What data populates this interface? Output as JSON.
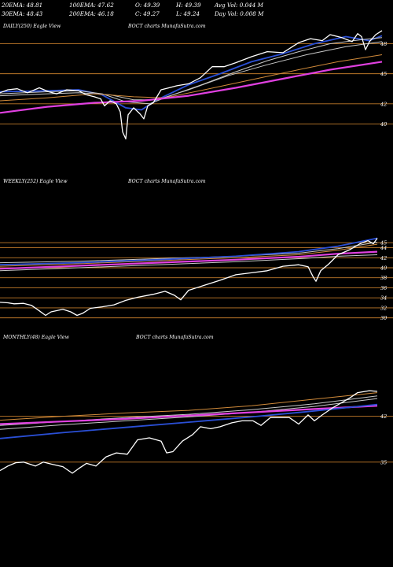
{
  "header": {
    "row1": [
      "20EMA: 48.81",
      "100EMA: 47.62",
      "O: 49.39",
      "H: 49.39",
      "Avg Vol: 0.044  M"
    ],
    "row2": [
      "30EMA: 48.43",
      "200EMA: 46.18",
      "C: 49.27",
      "L: 49.24",
      "Day Vol: 0.008  M"
    ]
  },
  "colors": {
    "background": "#000000",
    "price": "#ffffff",
    "gridline": "#c07a2a",
    "ema_short": "#2a4fd6",
    "ema_long": "#e040e0",
    "ema_mid": "#c8c8c8",
    "ema_orange": "#d08a3a"
  },
  "chart_data": [
    {
      "type": "line",
      "label": "DAILY(250) Eagle  View",
      "watermark": "BOCT charts MunafaSutra.com",
      "y_ticks": [
        48,
        45,
        42,
        40
      ],
      "ylim": [
        39,
        50
      ],
      "x_count": 250,
      "price_path": [
        [
          0,
          43.1
        ],
        [
          10,
          43.4
        ],
        [
          22,
          43.5
        ],
        [
          35,
          43.1
        ],
        [
          50,
          43.6
        ],
        [
          62,
          43.2
        ],
        [
          72,
          43.0
        ],
        [
          85,
          43.4
        ],
        [
          100,
          43.3
        ],
        [
          110,
          42.9
        ],
        [
          120,
          42.7
        ],
        [
          128,
          42.5
        ],
        [
          133,
          41.8
        ],
        [
          140,
          42.3
        ],
        [
          148,
          42.0
        ],
        [
          153,
          41.2
        ],
        [
          156,
          39.2
        ],
        [
          160,
          38.5
        ],
        [
          163,
          40.9
        ],
        [
          170,
          41.6
        ],
        [
          178,
          41.0
        ],
        [
          183,
          40.5
        ],
        [
          188,
          41.8
        ],
        [
          195,
          42.1
        ],
        [
          205,
          43.4
        ],
        [
          215,
          43.6
        ],
        [
          225,
          43.8
        ],
        [
          240,
          44.0
        ],
        [
          255,
          44.6
        ],
        [
          270,
          45.7
        ],
        [
          285,
          45.7
        ],
        [
          300,
          46.1
        ],
        [
          320,
          46.7
        ],
        [
          340,
          47.2
        ],
        [
          360,
          47.1
        ],
        [
          380,
          48.1
        ],
        [
          395,
          48.5
        ],
        [
          410,
          48.3
        ],
        [
          420,
          48.9
        ],
        [
          435,
          48.6
        ],
        [
          448,
          48.2
        ],
        [
          455,
          49.0
        ],
        [
          460,
          48.7
        ],
        [
          465,
          47.4
        ],
        [
          470,
          48.2
        ],
        [
          478,
          48.9
        ],
        [
          486,
          49.3
        ]
      ],
      "ema_series": [
        {
          "color": "#2a4fd6",
          "width": 1.8,
          "path": [
            [
              0,
              43.2
            ],
            [
              60,
              43.3
            ],
            [
              100,
              43.4
            ],
            [
              130,
              42.9
            ],
            [
              160,
              41.6
            ],
            [
              180,
              41.4
            ],
            [
              200,
              42.4
            ],
            [
              240,
              43.9
            ],
            [
              280,
              45.0
            ],
            [
              320,
              46.2
            ],
            [
              360,
              47.0
            ],
            [
              400,
              48.0
            ],
            [
              440,
              48.7
            ],
            [
              470,
              48.3
            ],
            [
              486,
              48.8
            ]
          ]
        },
        {
          "color": "#c8c8c8",
          "width": 1.0,
          "path": [
            [
              0,
              43.0
            ],
            [
              60,
              43.2
            ],
            [
              100,
              43.3
            ],
            [
              130,
              43.0
            ],
            [
              160,
              42.2
            ],
            [
              190,
              42.0
            ],
            [
              220,
              42.9
            ],
            [
              260,
              44.0
            ],
            [
              300,
              45.2
            ],
            [
              340,
              46.3
            ],
            [
              380,
              47.2
            ],
            [
              420,
              48.0
            ],
            [
              460,
              48.4
            ],
            [
              486,
              48.6
            ]
          ]
        },
        {
          "color": "#c8c8c8",
          "width": 1.0,
          "path": [
            [
              0,
              42.8
            ],
            [
              60,
              43.0
            ],
            [
              100,
              43.1
            ],
            [
              140,
              42.9
            ],
            [
              170,
              42.4
            ],
            [
              200,
              42.4
            ],
            [
              240,
              43.4
            ],
            [
              290,
              44.8
            ],
            [
              340,
              45.9
            ],
            [
              390,
              46.9
            ],
            [
              440,
              47.7
            ],
            [
              486,
              48.2
            ]
          ]
        },
        {
          "color": "#d08a3a",
          "width": 1.0,
          "path": [
            [
              0,
              42.3
            ],
            [
              60,
              42.6
            ],
            [
              120,
              43.0
            ],
            [
              170,
              42.7
            ],
            [
              210,
              42.6
            ],
            [
              260,
              43.4
            ],
            [
              320,
              44.4
            ],
            [
              380,
              45.4
            ],
            [
              430,
              46.2
            ],
            [
              486,
              46.9
            ]
          ]
        },
        {
          "color": "#e040e0",
          "width": 2.2,
          "path": [
            [
              0,
              41.1
            ],
            [
              60,
              41.7
            ],
            [
              120,
              42.1
            ],
            [
              180,
              42.3
            ],
            [
              240,
              42.8
            ],
            [
              300,
              43.6
            ],
            [
              360,
              44.5
            ],
            [
              420,
              45.4
            ],
            [
              486,
              46.2
            ]
          ]
        }
      ]
    },
    {
      "type": "line",
      "label": "WEEKLY(252) Eagle  View",
      "watermark": "BOCT charts MunafaSutra.com",
      "y_ticks": [
        45,
        44,
        42,
        40,
        38,
        36,
        34,
        32,
        30
      ],
      "ylim": [
        29,
        46.6
      ],
      "x_count": 252,
      "price_path": [
        [
          0,
          33.1
        ],
        [
          10,
          33.0
        ],
        [
          18,
          32.8
        ],
        [
          30,
          32.9
        ],
        [
          40,
          32.5
        ],
        [
          50,
          31.4
        ],
        [
          58,
          30.5
        ],
        [
          65,
          31.2
        ],
        [
          80,
          31.7
        ],
        [
          90,
          31.2
        ],
        [
          98,
          30.5
        ],
        [
          105,
          30.9
        ],
        [
          115,
          31.9
        ],
        [
          130,
          32.2
        ],
        [
          145,
          32.6
        ],
        [
          160,
          33.5
        ],
        [
          175,
          34.1
        ],
        [
          195,
          34.7
        ],
        [
          210,
          35.3
        ],
        [
          222,
          34.5
        ],
        [
          230,
          33.6
        ],
        [
          240,
          35.5
        ],
        [
          260,
          36.5
        ],
        [
          280,
          37.5
        ],
        [
          300,
          38.6
        ],
        [
          320,
          39.0
        ],
        [
          340,
          39.4
        ],
        [
          360,
          40.3
        ],
        [
          380,
          40.6
        ],
        [
          392,
          40.2
        ],
        [
          398,
          38.3
        ],
        [
          402,
          37.3
        ],
        [
          408,
          39.4
        ],
        [
          418,
          40.7
        ],
        [
          430,
          42.6
        ],
        [
          445,
          43.6
        ],
        [
          458,
          44.8
        ],
        [
          468,
          45.4
        ],
        [
          475,
          44.8
        ],
        [
          480,
          45.9
        ]
      ],
      "ema_series": [
        {
          "color": "#c8c8c8",
          "width": 1.0,
          "path": [
            [
              0,
              41.0
            ],
            [
              100,
              41.3
            ],
            [
              200,
              41.8
            ],
            [
              300,
              42.3
            ],
            [
              380,
              42.9
            ],
            [
              430,
              43.8
            ],
            [
              480,
              45.1
            ]
          ]
        },
        {
          "color": "#d08a3a",
          "width": 1.0,
          "path": [
            [
              0,
              40.3
            ],
            [
              100,
              40.8
            ],
            [
              200,
              41.4
            ],
            [
              300,
              42.0
            ],
            [
              380,
              42.6
            ],
            [
              430,
              43.5
            ],
            [
              480,
              44.7
            ]
          ]
        },
        {
          "color": "#2a4fd6",
          "width": 1.8,
          "path": [
            [
              0,
              40.6
            ],
            [
              100,
              41.0
            ],
            [
              200,
              41.6
            ],
            [
              300,
              42.3
            ],
            [
              380,
              43.2
            ],
            [
              430,
              44.3
            ],
            [
              480,
              45.9
            ]
          ]
        },
        {
          "color": "#e040e0",
          "width": 2.2,
          "path": [
            [
              0,
              39.8
            ],
            [
              100,
              40.4
            ],
            [
              200,
              41.0
            ],
            [
              300,
              41.6
            ],
            [
              380,
              42.2
            ],
            [
              430,
              42.8
            ],
            [
              480,
              43.2
            ]
          ]
        },
        {
          "color": "#c8c8c8",
          "width": 1.0,
          "path": [
            [
              0,
              39.4
            ],
            [
              100,
              40.0
            ],
            [
              200,
              40.6
            ],
            [
              300,
              41.2
            ],
            [
              380,
              41.8
            ],
            [
              430,
              42.3
            ],
            [
              480,
              42.6
            ]
          ]
        }
      ]
    },
    {
      "type": "line",
      "label": "MONTHLY(48) Eagle  View",
      "watermark": "BOCT charts MunafaSutra.com",
      "y_ticks": [
        42,
        35
      ],
      "ylim": [
        28.6,
        47.6
      ],
      "x_count": 48,
      "price_path": [
        [
          0,
          33.7
        ],
        [
          10,
          34.4
        ],
        [
          20,
          34.9
        ],
        [
          30,
          35.0
        ],
        [
          45,
          34.4
        ],
        [
          55,
          35.0
        ],
        [
          65,
          34.7
        ],
        [
          80,
          34.3
        ],
        [
          92,
          33.3
        ],
        [
          100,
          34.0
        ],
        [
          110,
          34.8
        ],
        [
          122,
          34.4
        ],
        [
          135,
          35.8
        ],
        [
          148,
          36.4
        ],
        [
          162,
          36.2
        ],
        [
          175,
          38.4
        ],
        [
          190,
          38.7
        ],
        [
          205,
          38.2
        ],
        [
          212,
          36.4
        ],
        [
          220,
          36.6
        ],
        [
          232,
          38.2
        ],
        [
          245,
          39.2
        ],
        [
          255,
          40.4
        ],
        [
          268,
          40.1
        ],
        [
          280,
          40.4
        ],
        [
          295,
          41.0
        ],
        [
          308,
          41.3
        ],
        [
          322,
          41.3
        ],
        [
          332,
          40.6
        ],
        [
          344,
          41.8
        ],
        [
          355,
          41.8
        ],
        [
          368,
          41.8
        ],
        [
          380,
          40.8
        ],
        [
          392,
          42.2
        ],
        [
          400,
          41.3
        ],
        [
          410,
          42.2
        ],
        [
          422,
          43.2
        ],
        [
          435,
          44.1
        ],
        [
          445,
          44.8
        ],
        [
          455,
          45.6
        ],
        [
          470,
          45.9
        ],
        [
          480,
          45.8
        ]
      ],
      "ema_series": [
        {
          "color": "#d08a3a",
          "width": 1.0,
          "path": [
            [
              0,
              41.4
            ],
            [
              80,
              42.0
            ],
            [
              160,
              42.5
            ],
            [
              240,
              42.9
            ],
            [
              320,
              43.6
            ],
            [
              400,
              44.6
            ],
            [
              480,
              45.6
            ]
          ]
        },
        {
          "color": "#c8c8c8",
          "width": 1.0,
          "path": [
            [
              0,
              40.6
            ],
            [
              80,
              41.2
            ],
            [
              160,
              41.8
            ],
            [
              240,
              42.3
            ],
            [
              320,
              43.0
            ],
            [
              400,
              43.9
            ],
            [
              480,
              45.1
            ]
          ]
        },
        {
          "color": "#c8c8c8",
          "width": 1.0,
          "path": [
            [
              0,
              40.0
            ],
            [
              80,
              40.7
            ],
            [
              160,
              41.3
            ],
            [
              240,
              41.9
            ],
            [
              320,
              42.6
            ],
            [
              400,
              43.5
            ],
            [
              480,
              44.7
            ]
          ]
        },
        {
          "color": "#e040e0",
          "width": 2.2,
          "path": [
            [
              0,
              40.8
            ],
            [
              80,
              41.2
            ],
            [
              160,
              41.6
            ],
            [
              240,
              42.1
            ],
            [
              320,
              42.6
            ],
            [
              400,
              43.1
            ],
            [
              480,
              43.6
            ]
          ]
        },
        {
          "color": "#2a4fd6",
          "width": 1.8,
          "path": [
            [
              0,
              38.6
            ],
            [
              80,
              39.5
            ],
            [
              160,
              40.3
            ],
            [
              240,
              41.1
            ],
            [
              320,
              41.9
            ],
            [
              400,
              42.8
            ],
            [
              480,
              43.8
            ]
          ]
        }
      ]
    }
  ]
}
